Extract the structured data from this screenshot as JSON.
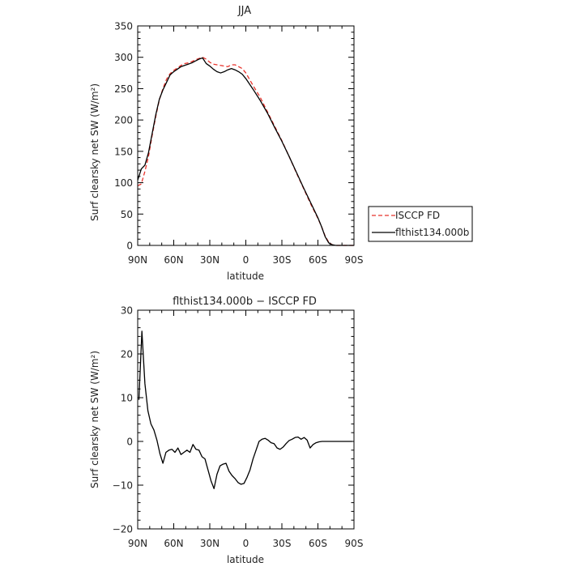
{
  "chart_data": [
    {
      "type": "line",
      "title": "JJA",
      "xlabel": "latitude",
      "ylabel": "Surf clearsky net SW (W/m²)",
      "xlim": [
        90,
        -90
      ],
      "ylim": [
        0,
        350
      ],
      "x_ticks": [
        90,
        60,
        30,
        0,
        -30,
        -60,
        -90
      ],
      "x_tick_labels": [
        "90N",
        "60N",
        "30N",
        "0",
        "30S",
        "60S",
        "90S"
      ],
      "y_ticks": [
        0,
        50,
        100,
        150,
        200,
        250,
        300,
        350
      ],
      "y_tick_labels": [
        "0",
        "50",
        "100",
        "150",
        "200",
        "250",
        "300",
        "350"
      ],
      "grid": false,
      "legend_position": "right",
      "series": [
        {
          "name": "ISCCP FD",
          "color": "#e8332c",
          "dash": "dashed",
          "x": [
            90,
            87,
            84,
            81,
            78,
            75,
            72,
            69,
            66,
            63,
            60,
            57,
            54,
            51,
            48,
            45,
            42,
            39,
            36,
            33,
            30,
            27,
            24,
            21,
            18,
            15,
            12,
            9,
            6,
            3,
            0,
            -6,
            -12,
            -18,
            -24,
            -30,
            -36,
            -42,
            -48,
            -54,
            -60,
            -63,
            -66,
            -69,
            -72,
            -75,
            -78,
            -81,
            -84,
            -87,
            -90
          ],
          "y": [
            95,
            98,
            118,
            142,
            175,
            205,
            232,
            250,
            265,
            274,
            279,
            283,
            287,
            290,
            291,
            293,
            296,
            298,
            300,
            297,
            292,
            289,
            288,
            287,
            286,
            285,
            288,
            288,
            285,
            282,
            275,
            255,
            236,
            213,
            190,
            167,
            142,
            116,
            91,
            66,
            43,
            30,
            15,
            5,
            1,
            0,
            0,
            0,
            0,
            0,
            0
          ]
        },
        {
          "name": "flthist134.000b",
          "color": "#000000",
          "dash": "solid",
          "x": [
            90,
            87,
            84,
            81,
            78,
            75,
            72,
            69,
            66,
            63,
            60,
            57,
            54,
            51,
            48,
            45,
            42,
            39,
            36,
            33,
            30,
            27,
            24,
            21,
            18,
            15,
            12,
            9,
            6,
            3,
            0,
            -6,
            -12,
            -18,
            -24,
            -30,
            -36,
            -42,
            -48,
            -54,
            -60,
            -63,
            -66,
            -69,
            -72,
            -75,
            -78,
            -81,
            -84,
            -87,
            -90
          ],
          "y": [
            104,
            122,
            128,
            148,
            178,
            208,
            233,
            248,
            260,
            272,
            277,
            281,
            285,
            287,
            289,
            291,
            294,
            297,
            299,
            290,
            286,
            281,
            277,
            275,
            277,
            280,
            282,
            280,
            277,
            273,
            266,
            249,
            231,
            211,
            188,
            166,
            142,
            117,
            92,
            68,
            44,
            30,
            14,
            4,
            1,
            0,
            0,
            0,
            0,
            0,
            0
          ]
        }
      ]
    },
    {
      "type": "line",
      "title": "flthist134.000b − ISCCP FD",
      "xlabel": "latitude",
      "ylabel": "Surf clearsky net SW (W/m²)",
      "xlim": [
        90,
        -90
      ],
      "ylim": [
        -20,
        30
      ],
      "x_ticks": [
        90,
        60,
        30,
        0,
        -30,
        -60,
        -90
      ],
      "x_tick_labels": [
        "90N",
        "60N",
        "30N",
        "0",
        "30S",
        "60S",
        "90S"
      ],
      "y_ticks": [
        -20,
        -10,
        0,
        10,
        20,
        30
      ],
      "y_tick_labels": [
        "−20",
        "−10",
        "0",
        "10",
        "20",
        "30"
      ],
      "grid": false,
      "series": [
        {
          "color": "#000000",
          "dash": "solid",
          "x": [
            89,
            86.5,
            84,
            81.5,
            79,
            76.5,
            74,
            71.5,
            69,
            66.5,
            64,
            61.5,
            59,
            56.5,
            54,
            51.5,
            49,
            46.5,
            44,
            41.5,
            39,
            36.5,
            34,
            31.5,
            29,
            26.5,
            24,
            21.5,
            19,
            16.5,
            14,
            11.5,
            9,
            6.5,
            4,
            1.5,
            -1,
            -3.5,
            -6,
            -8.5,
            -11,
            -13.5,
            -16,
            -18.5,
            -21,
            -23.5,
            -26,
            -28.5,
            -31,
            -33.5,
            -36,
            -38.5,
            -41,
            -43.5,
            -46,
            -48.5,
            -51,
            -53.5,
            -56,
            -58.5,
            -61,
            -63.5,
            -66,
            -68.5,
            -71,
            -73.5,
            -76,
            -78.5,
            -81,
            -83.5,
            -86,
            -88.5
          ],
          "y": [
            9.5,
            25.2,
            13.2,
            7.0,
            4.0,
            2.6,
            0.3,
            -2.8,
            -5.0,
            -2.5,
            -2.0,
            -1.8,
            -2.5,
            -1.5,
            -3.0,
            -2.5,
            -2.0,
            -2.5,
            -0.7,
            -1.8,
            -2.0,
            -3.5,
            -4.0,
            -6.5,
            -9.0,
            -10.8,
            -7.5,
            -5.6,
            -5.2,
            -5.0,
            -6.8,
            -7.8,
            -8.5,
            -9.4,
            -9.8,
            -9.6,
            -8.2,
            -6.5,
            -4.0,
            -2.0,
            0.0,
            0.5,
            0.7,
            0.3,
            -0.3,
            -0.5,
            -1.5,
            -1.8,
            -1.3,
            -0.5,
            0.2,
            0.5,
            0.9,
            1.0,
            0.5,
            0.9,
            0.3,
            -1.5,
            -0.7,
            -0.3,
            -0.1,
            0.0,
            0.0,
            0.0,
            0.0,
            0.0,
            0.0,
            0.0,
            0.0,
            0.0,
            0.0,
            0.0
          ]
        }
      ]
    }
  ]
}
